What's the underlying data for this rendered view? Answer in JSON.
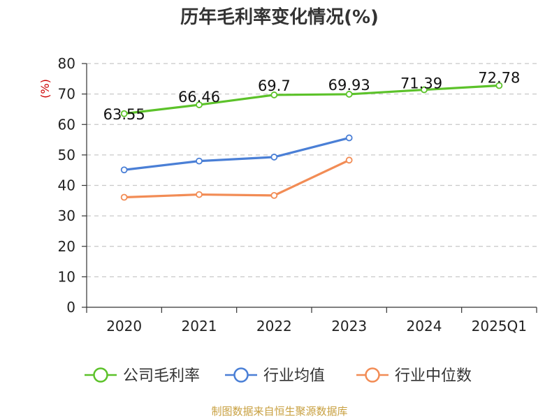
{
  "chart_data": {
    "type": "line",
    "title": "历年毛利率变化情况(%)",
    "ylabel": "(%)",
    "xlabel": "",
    "categories": [
      "2020",
      "2021",
      "2022",
      "2023",
      "2024",
      "2025Q1"
    ],
    "ylim": [
      0,
      80
    ],
    "yticks": [
      0,
      10,
      20,
      30,
      40,
      50,
      60,
      70,
      80
    ],
    "grid": "horizontal dashed",
    "legend_position": "bottom",
    "series": [
      {
        "name": "公司毛利率",
        "color": "#5cc22a",
        "values": [
          63.55,
          66.46,
          69.7,
          69.93,
          71.39,
          72.78
        ],
        "labels": [
          "63.55",
          "66.46",
          "69.7",
          "69.93",
          "71.39",
          "72.78"
        ]
      },
      {
        "name": "行业均值",
        "color": "#4a7fd6",
        "values": [
          45.1,
          48.0,
          49.3,
          55.6,
          null,
          null
        ],
        "labels": []
      },
      {
        "name": "行业中位数",
        "color": "#f28c55",
        "values": [
          36.1,
          37.0,
          36.7,
          48.3,
          null,
          null
        ],
        "labels": []
      }
    ],
    "source": "制图数据来自恒生聚源数据库"
  }
}
